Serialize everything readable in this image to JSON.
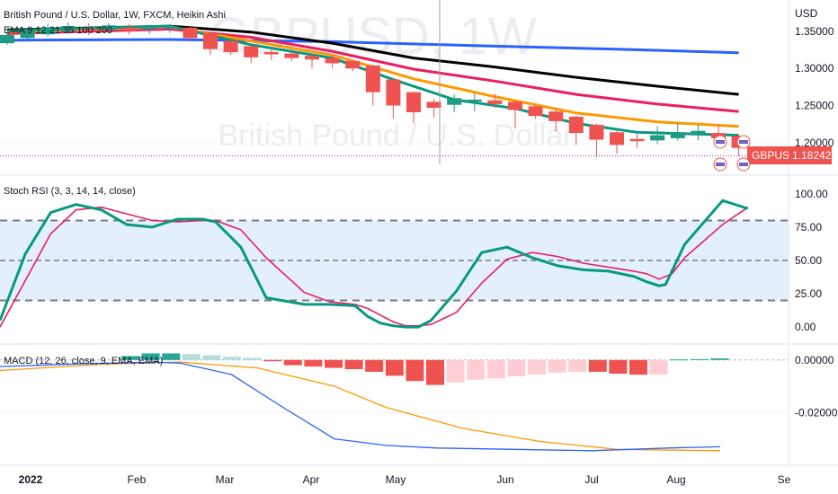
{
  "header": {
    "title": "British Pound / U.S. Dollar, 1W, FXCM, Heikin Ashi",
    "ema_legend": "EMA 9 12 21 35 100 200"
  },
  "watermark": {
    "symbol_line": "GBPUSD, 1W",
    "name_line": "British Pound / U.S. Dollar"
  },
  "price_axis": {
    "unit": "USD",
    "ticks": [
      "1.35000",
      "1.30000",
      "1.25000",
      "1.20000"
    ],
    "tick_values": [
      1.35,
      1.3,
      1.25,
      1.2
    ],
    "current_symbol": "GBPUSD",
    "current_price": "1.18242",
    "current_value": 1.18242
  },
  "stoch": {
    "title": "Stoch RSI (3, 3, 14, 14, close)",
    "ticks": [
      "100.00",
      "75.00",
      "50.00",
      "25.00",
      "0.00"
    ],
    "tick_values": [
      100,
      75,
      50,
      25,
      0
    ]
  },
  "macd": {
    "title": "MACD (12, 26, close, 9, EMA, EMA)",
    "ticks": [
      "0.00000",
      "-0.02000"
    ],
    "tick_values": [
      0,
      -0.02
    ]
  },
  "time_axis": {
    "labels": [
      "2022",
      "Feb",
      "Mar",
      "Apr",
      "May",
      "Jun",
      "Jul",
      "Aug",
      "Se"
    ]
  },
  "colors": {
    "bull": "#26a69a",
    "bull_body": "#1e9b84",
    "bear": "#ef5350",
    "ema_blue": "#2962ff",
    "ema_black": "#000000",
    "ema_pink": "#e91e63",
    "ema_orange": "#ff9800",
    "ema_green": "#089981",
    "stoch_k": "#089981",
    "stoch_d": "#e91e63",
    "band_fill": "#e3f0fc",
    "macd_line": "#2962ff",
    "signal_line": "#ff9800",
    "label_bg": "#ef5350"
  },
  "chart_data": {
    "type": "candlestick",
    "title": "British Pound / U.S. Dollar, 1W, FXCM, Heikin Ashi",
    "ylim": [
      1.17,
      1.37
    ],
    "candles": [
      {
        "o": 1.334,
        "c": 1.345,
        "h": 1.349,
        "l": 1.332
      },
      {
        "o": 1.341,
        "c": 1.35,
        "h": 1.354,
        "l": 1.338
      },
      {
        "o": 1.346,
        "c": 1.355,
        "h": 1.36,
        "l": 1.343
      },
      {
        "o": 1.35,
        "c": 1.357,
        "h": 1.362,
        "l": 1.346
      },
      {
        "o": 1.353,
        "c": 1.352,
        "h": 1.361,
        "l": 1.345
      },
      {
        "o": 1.352,
        "c": 1.358,
        "h": 1.361,
        "l": 1.347
      },
      {
        "o": 1.355,
        "c": 1.351,
        "h": 1.36,
        "l": 1.346
      },
      {
        "o": 1.353,
        "c": 1.356,
        "h": 1.359,
        "l": 1.347
      },
      {
        "o": 1.354,
        "c": 1.357,
        "h": 1.36,
        "l": 1.348
      },
      {
        "o": 1.355,
        "c": 1.341,
        "h": 1.357,
        "l": 1.336
      },
      {
        "o": 1.348,
        "c": 1.326,
        "h": 1.349,
        "l": 1.318
      },
      {
        "o": 1.337,
        "c": 1.322,
        "h": 1.338,
        "l": 1.318
      },
      {
        "o": 1.33,
        "c": 1.315,
        "h": 1.331,
        "l": 1.307
      },
      {
        "o": 1.322,
        "c": 1.319,
        "h": 1.325,
        "l": 1.311
      },
      {
        "o": 1.32,
        "c": 1.314,
        "h": 1.322,
        "l": 1.31
      },
      {
        "o": 1.317,
        "c": 1.312,
        "h": 1.319,
        "l": 1.3
      },
      {
        "o": 1.314,
        "c": 1.307,
        "h": 1.318,
        "l": 1.3
      },
      {
        "o": 1.31,
        "c": 1.3,
        "h": 1.312,
        "l": 1.296
      },
      {
        "o": 1.304,
        "c": 1.268,
        "h": 1.305,
        "l": 1.25
      },
      {
        "o": 1.285,
        "c": 1.25,
        "h": 1.286,
        "l": 1.233
      },
      {
        "o": 1.268,
        "c": 1.241,
        "h": 1.269,
        "l": 1.226
      },
      {
        "o": 1.255,
        "c": 1.247,
        "h": 1.259,
        "l": 1.234
      },
      {
        "o": 1.251,
        "c": 1.26,
        "h": 1.265,
        "l": 1.241
      },
      {
        "o": 1.256,
        "c": 1.258,
        "h": 1.266,
        "l": 1.242
      },
      {
        "o": 1.257,
        "c": 1.252,
        "h": 1.266,
        "l": 1.247
      },
      {
        "o": 1.255,
        "c": 1.244,
        "h": 1.257,
        "l": 1.219
      },
      {
        "o": 1.249,
        "c": 1.236,
        "h": 1.251,
        "l": 1.232
      },
      {
        "o": 1.242,
        "c": 1.229,
        "h": 1.245,
        "l": 1.215
      },
      {
        "o": 1.235,
        "c": 1.213,
        "h": 1.236,
        "l": 1.197
      },
      {
        "o": 1.224,
        "c": 1.204,
        "h": 1.226,
        "l": 1.18
      },
      {
        "o": 1.214,
        "c": 1.197,
        "h": 1.216,
        "l": 1.185
      },
      {
        "o": 1.205,
        "c": 1.202,
        "h": 1.212,
        "l": 1.193
      },
      {
        "o": 1.203,
        "c": 1.21,
        "h": 1.222,
        "l": 1.198
      },
      {
        "o": 1.206,
        "c": 1.214,
        "h": 1.226,
        "l": 1.203
      },
      {
        "o": 1.21,
        "c": 1.216,
        "h": 1.224,
        "l": 1.203
      },
      {
        "o": 1.213,
        "c": 1.206,
        "h": 1.224,
        "l": 1.199
      },
      {
        "o": 1.209,
        "c": 1.193,
        "h": 1.211,
        "l": 1.182
      }
    ],
    "emas": [
      {
        "name": "EMA 200",
        "color": "#2962ff",
        "points": [
          [
            0,
            1.338
          ],
          [
            8,
            1.339
          ],
          [
            16,
            1.336
          ],
          [
            24,
            1.33
          ],
          [
            30,
            1.326
          ],
          [
            36,
            1.321
          ]
        ]
      },
      {
        "name": "EMA 100",
        "color": "#000000",
        "points": [
          [
            0,
            1.352
          ],
          [
            8,
            1.357
          ],
          [
            12,
            1.349
          ],
          [
            16,
            1.334
          ],
          [
            20,
            1.314
          ],
          [
            24,
            1.302
          ],
          [
            28,
            1.288
          ],
          [
            32,
            1.276
          ],
          [
            36,
            1.265
          ]
        ]
      },
      {
        "name": "EMA 35",
        "color": "#e91e63",
        "points": [
          [
            0,
            1.347
          ],
          [
            8,
            1.353
          ],
          [
            12,
            1.342
          ],
          [
            16,
            1.323
          ],
          [
            20,
            1.299
          ],
          [
            24,
            1.283
          ],
          [
            28,
            1.265
          ],
          [
            32,
            1.252
          ],
          [
            36,
            1.242
          ]
        ]
      },
      {
        "name": "EMA 21",
        "color": "#ff9800",
        "points": [
          [
            0,
            1.349
          ],
          [
            8,
            1.356
          ],
          [
            12,
            1.337
          ],
          [
            16,
            1.318
          ],
          [
            20,
            1.286
          ],
          [
            24,
            1.262
          ],
          [
            28,
            1.24
          ],
          [
            32,
            1.228
          ],
          [
            36,
            1.222
          ]
        ]
      },
      {
        "name": "EMA 9",
        "color": "#089981",
        "points": [
          [
            0,
            1.351
          ],
          [
            8,
            1.357
          ],
          [
            12,
            1.332
          ],
          [
            16,
            1.314
          ],
          [
            19,
            1.285
          ],
          [
            22,
            1.258
          ],
          [
            25,
            1.246
          ],
          [
            28,
            1.226
          ],
          [
            31,
            1.214
          ],
          [
            36,
            1.21
          ]
        ]
      }
    ],
    "stoch_rsi": {
      "ylim": [
        -8,
        108
      ],
      "bands": [
        20,
        50,
        80
      ],
      "k": [
        5,
        55,
        86,
        92,
        88,
        77,
        75,
        81,
        81,
        79,
        60,
        22,
        17,
        17,
        16,
        8,
        3,
        1,
        0,
        0,
        5,
        27,
        56,
        60,
        52,
        46,
        43,
        42,
        38,
        34,
        31,
        32,
        62,
        95,
        89
      ],
      "d": [
        0,
        35,
        70,
        88,
        90,
        85,
        80,
        79,
        80,
        80,
        73,
        52,
        26,
        19,
        17,
        14,
        9,
        4,
        1,
        1,
        2,
        11,
        33,
        51,
        56,
        53,
        48,
        45,
        42,
        40,
        36,
        40,
        52,
        77,
        90
      ],
      "x_k": [
        0,
        2,
        4,
        6,
        8,
        10,
        12,
        14,
        16,
        17,
        19,
        21,
        24,
        26,
        28,
        29,
        30,
        31,
        32,
        33,
        34,
        36,
        38,
        40,
        42,
        44,
        46,
        48,
        50,
        51,
        52,
        52.5,
        54,
        57,
        59
      ],
      "x_d": [
        0,
        2,
        4,
        6,
        8,
        10,
        12,
        14,
        16,
        17,
        19,
        21,
        24,
        26,
        28,
        29,
        30,
        31,
        32,
        33,
        34,
        36,
        38,
        40,
        42,
        44,
        46,
        48,
        50,
        51,
        52,
        53,
        54,
        57,
        59
      ]
    },
    "macd": {
      "ylim": [
        -0.038,
        0.003
      ],
      "histogram": [
        0.0015,
        0.0025,
        0.0025,
        0.0022,
        0.0018,
        0.0012,
        0.0008,
        -0.0005,
        -0.002,
        -0.0025,
        -0.003,
        -0.0035,
        -0.0045,
        -0.006,
        -0.008,
        -0.0095,
        -0.0085,
        -0.0075,
        -0.007,
        -0.0062,
        -0.0055,
        -0.0048,
        -0.0045,
        -0.0045,
        -0.0052,
        -0.0056,
        -0.0055,
        0.0002,
        0.0003,
        0.0006
      ],
      "macd_line": [
        [
          0,
          -0.0025
        ],
        [
          6,
          -0.0015
        ],
        [
          12,
          -0.0008
        ],
        [
          14,
          -0.0012
        ],
        [
          18,
          -0.0055
        ],
        [
          22,
          -0.018
        ],
        [
          26,
          -0.03
        ],
        [
          30,
          -0.0325
        ],
        [
          34,
          -0.0335
        ],
        [
          40,
          -0.034
        ],
        [
          46,
          -0.0345
        ],
        [
          52,
          -0.0335
        ],
        [
          56,
          -0.033
        ]
      ],
      "signal_line": [
        [
          0,
          -0.004
        ],
        [
          8,
          -0.0016
        ],
        [
          14,
          -0.0008
        ],
        [
          20,
          -0.003
        ],
        [
          26,
          -0.01
        ],
        [
          30,
          -0.018
        ],
        [
          36,
          -0.026
        ],
        [
          42,
          -0.031
        ],
        [
          48,
          -0.034
        ],
        [
          56,
          -0.0345
        ]
      ]
    }
  }
}
